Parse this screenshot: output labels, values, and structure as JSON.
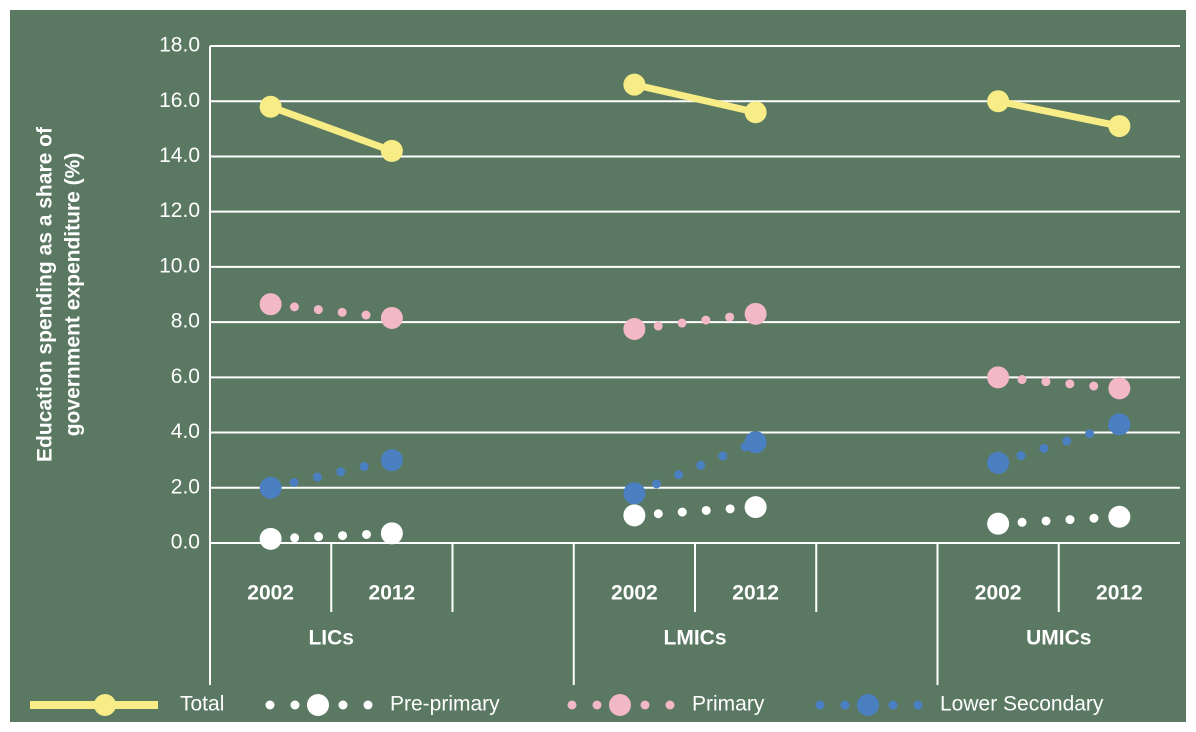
{
  "chart_data": {
    "type": "line",
    "ylabel": [
      "Education spending as a share of",
      "government expenditure (%)"
    ],
    "categories": [
      "2002",
      "2012",
      null,
      "2002",
      "2012",
      null,
      "2002",
      "2012"
    ],
    "groups": [
      "LICs",
      "LMICs",
      "UMICs"
    ],
    "series": [
      {
        "name": "Total",
        "color": "#f7ec85",
        "style": "solid",
        "values": [
          15.8,
          14.2,
          null,
          16.6,
          15.6,
          null,
          16.0,
          15.1
        ]
      },
      {
        "name": "Pre-primary",
        "color": "#ffffff",
        "style": "dotted",
        "values": [
          0.15,
          0.35,
          null,
          1.0,
          1.3,
          null,
          0.7,
          0.95
        ]
      },
      {
        "name": "Primary",
        "color": "#f2b8c6",
        "style": "dotted",
        "values": [
          8.65,
          8.15,
          null,
          7.75,
          8.3,
          null,
          6.0,
          5.6
        ]
      },
      {
        "name": "Lower Secondary",
        "color": "#4a7fc1",
        "style": "dotted",
        "values": [
          2.0,
          3.0,
          null,
          1.8,
          3.65,
          null,
          2.9,
          4.3
        ]
      }
    ],
    "ylim": [
      0,
      18
    ],
    "yticks": [
      {
        "value": 0,
        "label": "0.0"
      },
      {
        "value": 2,
        "label": "2.0"
      },
      {
        "value": 4,
        "label": "4.0"
      },
      {
        "value": 6,
        "label": "6.0"
      },
      {
        "value": 8,
        "label": "8.0"
      },
      {
        "value": 10,
        "label": "10.0"
      },
      {
        "value": 12,
        "label": "12.0"
      },
      {
        "value": 14,
        "label": "14.0"
      },
      {
        "value": 16,
        "label": "16.0"
      },
      {
        "value": 18,
        "label": "18.0"
      }
    ],
    "grid": true,
    "legend": "bottom"
  }
}
